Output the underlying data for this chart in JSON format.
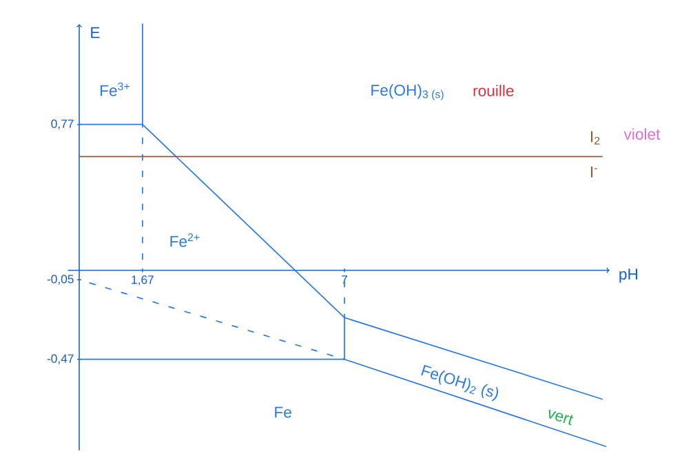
{
  "chart_data": {
    "type": "line",
    "xlabel": "pH",
    "ylabel": "E",
    "xlim": [
      -0.3,
      14
    ],
    "ylim": [
      -0.95,
      1.3
    ],
    "xticks": [
      {
        "value": 1.67,
        "label": "1,67"
      },
      7
    ],
    "yticks": [
      {
        "value": 0.77,
        "label": "0,77"
      },
      {
        "value": -0.05,
        "label": "-0,05"
      },
      {
        "value": -0.47,
        "label": "-0,47"
      }
    ],
    "marker": "none",
    "line_style": "solid",
    "series": [
      {
        "color": "#2b7be4",
        "x": [
          0,
          1.67,
          1.67,
          null,
          1.67,
          7,
          13.8,
          null,
          0,
          7,
          13.9,
          null,
          7,
          7
        ],
        "values": [
          0.77,
          0.77,
          1.3,
          null,
          0.77,
          -0.25,
          -0.68,
          null,
          -0.47,
          -0.47,
          -0.93,
          null,
          -0.47,
          -0.25
        ]
      },
      {
        "color": "#2b7be4",
        "line_style": "dashed",
        "x": [
          0,
          7,
          null,
          1.67,
          1.67,
          null,
          7,
          7
        ],
        "values": [
          -0.05,
          -0.47,
          null,
          0,
          0.77,
          null,
          0,
          -0.25
        ]
      },
      {
        "color": "#8b5a3c",
        "x": [
          0,
          13.8
        ],
        "values": [
          0.6,
          0.6
        ]
      }
    ],
    "annotations": [
      "Fe$^{3+}$",
      "Fe$^{2+}$",
      "Fe(OH)$_{3 (s)}$",
      "rouille",
      "I$_{2}$",
      "violet",
      "I$^{-}$",
      "Fe",
      "Fe(OH)$_{2}$ (s)",
      "vert"
    ]
  }
}
